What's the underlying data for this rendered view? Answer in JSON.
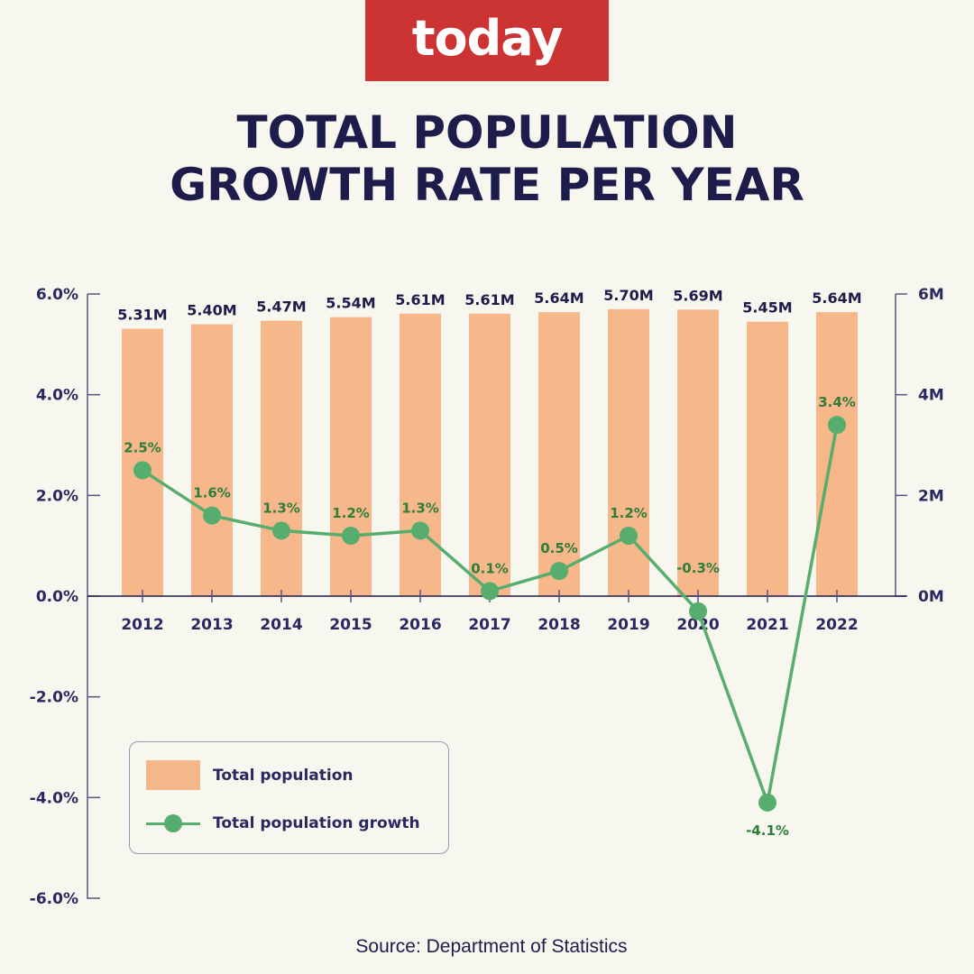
{
  "header": {
    "logo_text": "today",
    "title_line1": "TOTAL POPULATION",
    "title_line2": "GROWTH RATE PER YEAR"
  },
  "footer": {
    "source": "Source: Department of Statistics"
  },
  "colors": {
    "bar": "#f6b78b",
    "line": "#57ad6d",
    "label_green": "#2e7d3a",
    "text": "#1e1c4a",
    "logo_bg": "#cc3333",
    "background": "#f8f7ef"
  },
  "chart_data": {
    "type": "bar",
    "title": "TOTAL POPULATION GROWTH RATE PER YEAR",
    "categories": [
      "2012",
      "2013",
      "2014",
      "2015",
      "2016",
      "2017",
      "2018",
      "2019",
      "2020",
      "2021",
      "2022"
    ],
    "series": [
      {
        "name": "Total population",
        "type": "bar",
        "axis": "right",
        "unit": "M",
        "values": [
          5.31,
          5.4,
          5.47,
          5.54,
          5.61,
          5.61,
          5.64,
          5.7,
          5.69,
          5.45,
          5.64
        ],
        "labels": [
          "5.31M",
          "5.40M",
          "5.47M",
          "5.54M",
          "5.61M",
          "5.61M",
          "5.64M",
          "5.70M",
          "5.69M",
          "5.45M",
          "5.64M"
        ]
      },
      {
        "name": "Total population growth",
        "type": "line",
        "axis": "left",
        "unit": "%",
        "values": [
          2.5,
          1.6,
          1.3,
          1.2,
          1.3,
          0.1,
          0.5,
          1.2,
          -0.3,
          -4.1,
          3.4
        ],
        "labels": [
          "2.5%",
          "1.6%",
          "1.3%",
          "1.2%",
          "1.3%",
          "0.1%",
          "0.5%",
          "1.2%",
          "-0.3%",
          "-4.1%",
          "3.4%"
        ]
      }
    ],
    "left_axis": {
      "range": [
        -6,
        6
      ],
      "ticks": [
        6,
        4,
        2,
        0,
        -2,
        -4,
        -6
      ],
      "tick_labels": [
        "6.0%",
        "4.0%",
        "2.0%",
        "0.0%",
        "-2.0%",
        "-4.0%",
        "-6.0%"
      ]
    },
    "right_axis": {
      "range": [
        0,
        6
      ],
      "ticks": [
        6,
        4,
        2,
        0
      ],
      "tick_labels": [
        "6M",
        "4M",
        "2M",
        "0M"
      ]
    },
    "legend": {
      "position": "bottom-left",
      "items": [
        "Total population",
        "Total population growth"
      ]
    },
    "grid": false
  }
}
